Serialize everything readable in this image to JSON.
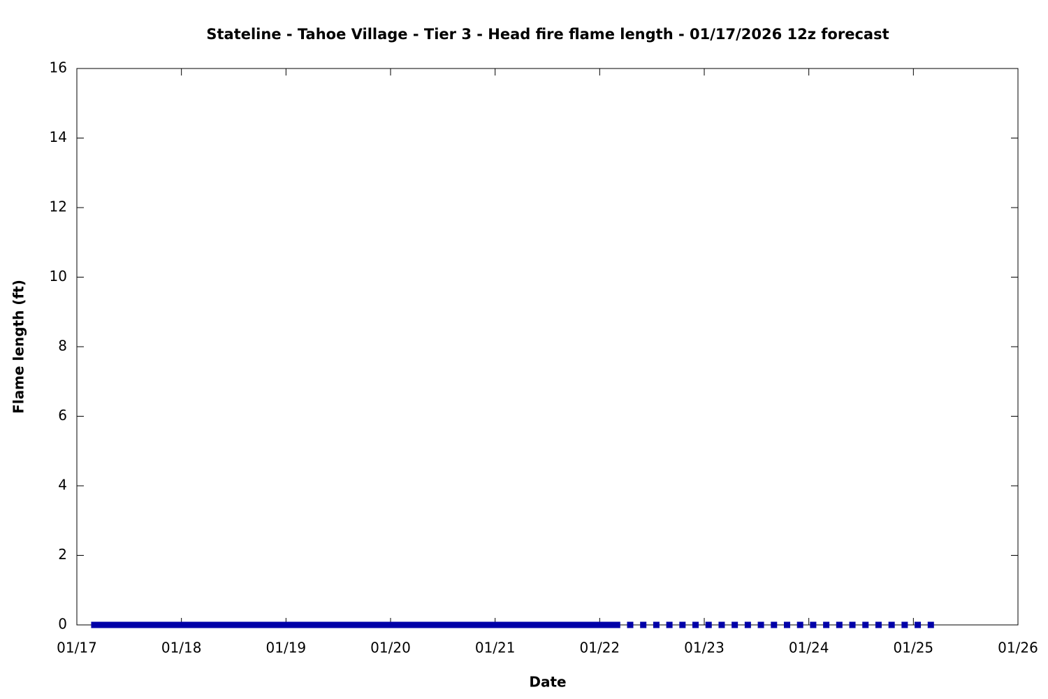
{
  "chart_data": {
    "type": "scatter",
    "title": "Stateline - Tahoe Village - Tier 3 - Head fire flame length - 01/17/2026 12z forecast",
    "x_label": "Date",
    "y_label": "Flame length (ft)",
    "color": "#0000a8",
    "x": [
      4,
      5,
      6,
      7,
      8,
      9,
      10,
      11,
      12,
      13,
      14,
      15,
      16,
      17,
      18,
      19,
      20,
      21,
      22,
      23,
      24,
      25,
      26,
      27,
      28,
      29,
      30,
      31,
      32,
      33,
      34,
      35,
      36,
      37,
      38,
      39,
      40,
      41,
      42,
      43,
      44,
      45,
      46,
      47,
      48,
      49,
      50,
      51,
      52,
      53,
      54,
      55,
      56,
      57,
      58,
      59,
      60,
      61,
      62,
      63,
      64,
      65,
      66,
      67,
      68,
      69,
      70,
      71,
      72,
      73,
      74,
      75,
      76,
      77,
      78,
      79,
      80,
      81,
      82,
      83,
      84,
      85,
      86,
      87,
      88,
      89,
      90,
      91,
      92,
      93,
      94,
      95,
      96,
      97,
      98,
      99,
      100,
      101,
      102,
      103,
      104,
      105,
      106,
      107,
      108,
      109,
      110,
      111,
      112,
      113,
      114,
      115,
      116,
      117,
      118,
      119,
      120,
      121,
      122,
      123,
      124,
      127,
      130,
      133,
      136,
      139,
      142,
      145,
      148,
      151,
      154,
      157,
      160,
      163,
      166,
      169,
      172,
      175,
      178,
      181,
      184,
      187,
      190,
      193,
      196
    ],
    "values": [
      0,
      0,
      0,
      0,
      0,
      0,
      0,
      0,
      0,
      0,
      0,
      0,
      0,
      0,
      0,
      0,
      0,
      0,
      0,
      0,
      0,
      0,
      0,
      0,
      0,
      0,
      0,
      0,
      0,
      0,
      0,
      0,
      0,
      0,
      0,
      0,
      0,
      0,
      0,
      0,
      0,
      0,
      0,
      0,
      0,
      0,
      0,
      0,
      0,
      0,
      0,
      0,
      0,
      0,
      0,
      0,
      0,
      0,
      0,
      0,
      0,
      0,
      0,
      0,
      0,
      0,
      0,
      0,
      0,
      0,
      0,
      0,
      0,
      0,
      0,
      0,
      0,
      0,
      0,
      0,
      0,
      0,
      0,
      0,
      0,
      0,
      0,
      0,
      0,
      0,
      0,
      0,
      0,
      0,
      0,
      0,
      0,
      0,
      0,
      0,
      0,
      0,
      0,
      0,
      0,
      0,
      0,
      0,
      0,
      0,
      0,
      0,
      0,
      0,
      0,
      0,
      0,
      0,
      0,
      0,
      0,
      0,
      0,
      0,
      0,
      0,
      0,
      0,
      0,
      0,
      0,
      0,
      0,
      0,
      0,
      0,
      0,
      0,
      0,
      0,
      0,
      0,
      0,
      0,
      0
    ],
    "xlim": [
      0,
      216
    ],
    "xticks": [
      {
        "value": 0,
        "label": "01/17"
      },
      {
        "value": 24,
        "label": "01/18"
      },
      {
        "value": 48,
        "label": "01/19"
      },
      {
        "value": 72,
        "label": "01/20"
      },
      {
        "value": 96,
        "label": "01/21"
      },
      {
        "value": 120,
        "label": "01/22"
      },
      {
        "value": 144,
        "label": "01/23"
      },
      {
        "value": 168,
        "label": "01/24"
      },
      {
        "value": 192,
        "label": "01/25"
      },
      {
        "value": 216,
        "label": "01/26"
      }
    ],
    "ylim": [
      0,
      16
    ],
    "yticks": [
      0,
      2,
      4,
      6,
      8,
      10,
      12,
      14,
      16
    ]
  }
}
